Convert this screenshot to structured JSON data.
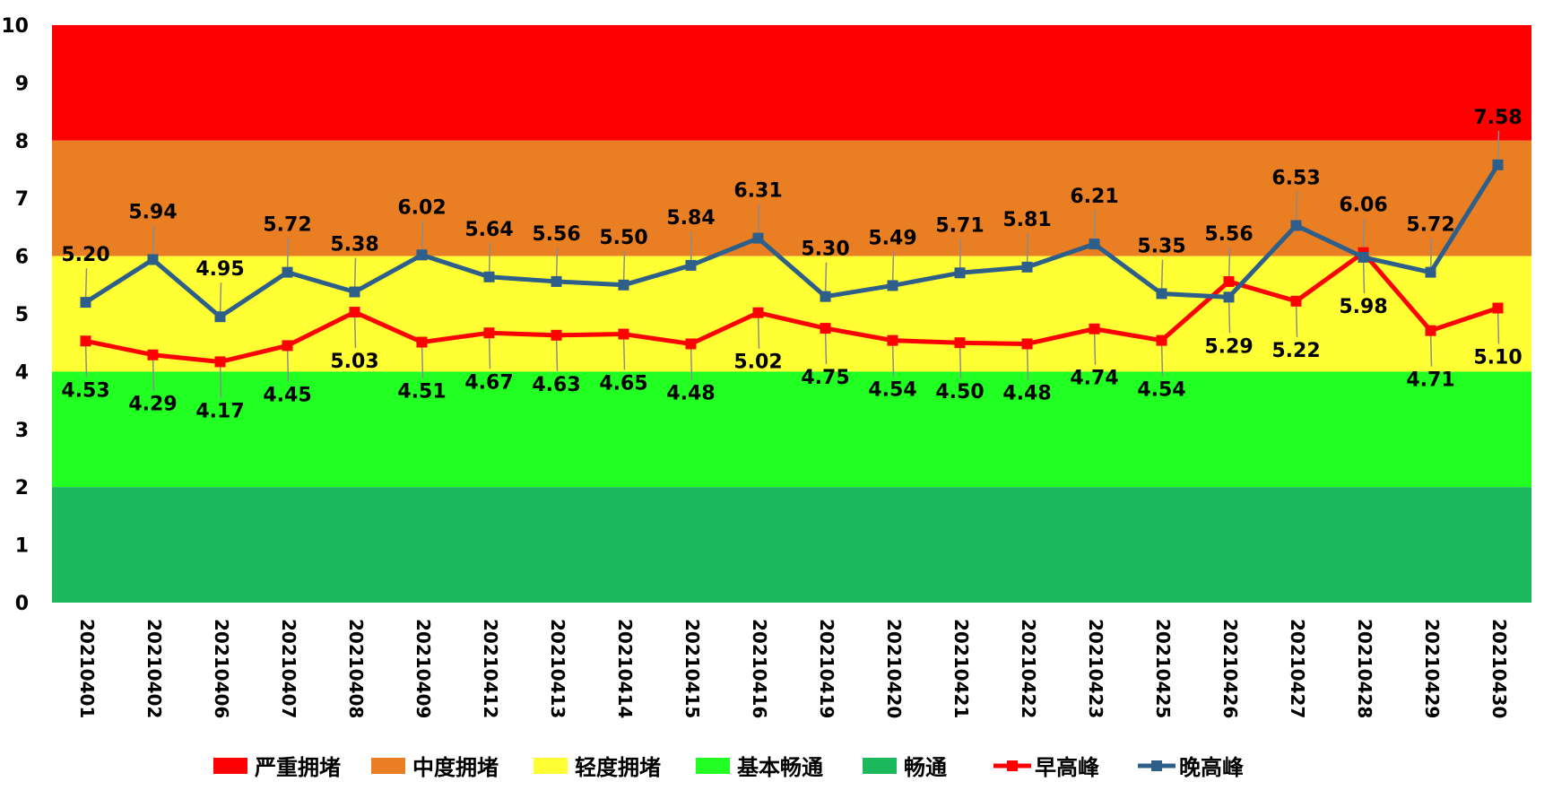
{
  "chart_data": {
    "type": "line",
    "title": "",
    "xlabel": "",
    "ylabel": "",
    "ylim": [
      0,
      10
    ],
    "yticks": [
      "0",
      "1",
      "2",
      "3",
      "4",
      "5",
      "6",
      "7",
      "8",
      "9",
      "10"
    ],
    "grid": false,
    "legend_position": "bottom",
    "categories": [
      "20210401",
      "20210402",
      "20210406",
      "20210407",
      "20210408",
      "20210409",
      "20210412",
      "20210413",
      "20210414",
      "20210415",
      "20210416",
      "20210419",
      "20210420",
      "20210421",
      "20210422",
      "20210423",
      "20210425",
      "20210426",
      "20210427",
      "20210428",
      "20210429",
      "20210430"
    ],
    "bands": [
      {
        "name": "严重拥堵",
        "from": 8,
        "to": 10,
        "color": "#ff0000"
      },
      {
        "name": "中度拥堵",
        "from": 6,
        "to": 8,
        "color": "#e97e22"
      },
      {
        "name": "轻度拥堵",
        "from": 4,
        "to": 6,
        "color": "#ffff33"
      },
      {
        "name": "基本畅通",
        "from": 2,
        "to": 4,
        "color": "#22ff22"
      },
      {
        "name": "畅通",
        "from": 0,
        "to": 2,
        "color": "#1cb85c"
      }
    ],
    "series": [
      {
        "name": "早高峰",
        "color": "#ff0000",
        "marker": "square",
        "values": [
          4.53,
          4.29,
          4.17,
          4.45,
          5.03,
          4.51,
          4.67,
          4.63,
          4.65,
          4.48,
          5.02,
          4.75,
          4.54,
          4.5,
          4.48,
          4.74,
          4.54,
          5.56,
          5.22,
          6.06,
          4.71,
          5.1
        ],
        "labels": [
          "4.53",
          "4.29",
          "4.17",
          "4.45",
          "5.03",
          "4.51",
          "4.67",
          "4.63",
          "4.65",
          "4.48",
          "5.02",
          "4.75",
          "4.54",
          "4.50",
          "4.48",
          "4.74",
          "4.54",
          "5.56",
          "5.22",
          "6.06",
          "4.71",
          "5.10"
        ]
      },
      {
        "name": "晚高峰",
        "color": "#2e5f8a",
        "marker": "square",
        "values": [
          5.2,
          5.94,
          4.95,
          5.72,
          5.38,
          6.02,
          5.64,
          5.56,
          5.5,
          5.84,
          6.31,
          5.3,
          5.49,
          5.71,
          5.81,
          6.21,
          5.35,
          5.29,
          6.53,
          5.98,
          5.72,
          7.58
        ],
        "labels": [
          "5.20",
          "5.94",
          "4.95",
          "5.72",
          "5.38",
          "6.02",
          "5.64",
          "5.56",
          "5.50",
          "5.84",
          "6.31",
          "5.30",
          "5.49",
          "5.71",
          "5.81",
          "6.21",
          "5.35",
          "5.29",
          "6.53",
          "5.98",
          "5.72",
          "7.58"
        ]
      }
    ],
    "legend": [
      "严重拥堵",
      "中度拥堵",
      "轻度拥堵",
      "基本畅通",
      "畅通",
      "早高峰",
      "晚高峰"
    ]
  }
}
